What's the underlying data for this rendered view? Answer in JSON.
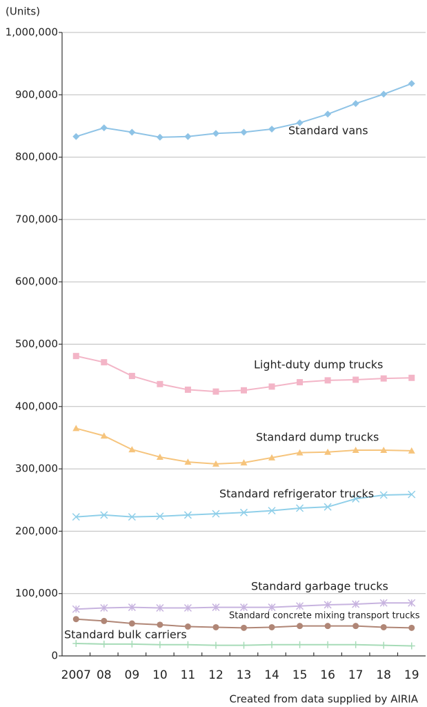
{
  "chart_data": {
    "type": "line",
    "y_label": "(Units)",
    "source": "Created from data supplied by AIRIA",
    "categories": [
      "2007",
      "08",
      "09",
      "10",
      "11",
      "12",
      "13",
      "14",
      "15",
      "16",
      "17",
      "18",
      "19"
    ],
    "ylim": [
      0,
      1000000
    ],
    "yticks": [
      0,
      {
        "value": 100000,
        "label": "100,000"
      },
      {
        "value": 200000,
        "label": "200,000"
      },
      {
        "value": 300000,
        "label": "300,000"
      },
      {
        "value": 400000,
        "label": "400,000"
      },
      {
        "value": 500000,
        "label": "500,000"
      },
      {
        "value": 600000,
        "label": "600,000"
      },
      {
        "value": 700000,
        "label": "700,000"
      },
      {
        "value": 800000,
        "label": "800,000"
      },
      {
        "value": 900000,
        "label": "900,000"
      },
      {
        "value": 1000000,
        "label": "1,000,000"
      }
    ],
    "grid": true,
    "series": [
      {
        "name": "Standard vans",
        "color": "#8ec3e6",
        "marker": "diamond",
        "values": [
          833000,
          847000,
          840000,
          832000,
          833000,
          838000,
          840000,
          845000,
          855000,
          869000,
          886000,
          901000,
          918000
        ]
      },
      {
        "name": "Light-duty dump trucks",
        "color": "#f3b5c7",
        "marker": "square",
        "values": [
          481000,
          471000,
          449000,
          436000,
          427000,
          424000,
          426000,
          432000,
          439000,
          442000,
          443000,
          445000,
          446000
        ]
      },
      {
        "name": "Standard dump trucks",
        "color": "#f6c47c",
        "marker": "triangle",
        "values": [
          365000,
          353000,
          331000,
          319000,
          311000,
          308000,
          310000,
          318000,
          326000,
          327000,
          330000,
          330000,
          329000
        ]
      },
      {
        "name": "Standard refrigerator trucks",
        "color": "#8fcfe9",
        "marker": "x",
        "values": [
          223000,
          226000,
          223000,
          224000,
          226000,
          228000,
          230000,
          233000,
          237000,
          239000,
          252000,
          258000,
          259000
        ]
      },
      {
        "name": "Standard garbage trucks",
        "color": "#c7b3df",
        "marker": "asterisk",
        "values": [
          75000,
          77000,
          78000,
          77000,
          77000,
          78000,
          78000,
          78000,
          80000,
          82000,
          83000,
          85000,
          85000
        ]
      },
      {
        "name": "Standard concrete mixing transport trucks",
        "color": "#b08676",
        "marker": "circle",
        "values": [
          59000,
          56000,
          52000,
          50000,
          47000,
          46000,
          45000,
          46000,
          48000,
          48000,
          48000,
          46000,
          45000
        ]
      },
      {
        "name": "Standard bulk carriers",
        "color": "#a6dbb7",
        "marker": "plus",
        "values": [
          20000,
          19000,
          19000,
          18000,
          18000,
          17000,
          17000,
          18000,
          18000,
          18000,
          18000,
          17000,
          16000
        ]
      }
    ]
  }
}
